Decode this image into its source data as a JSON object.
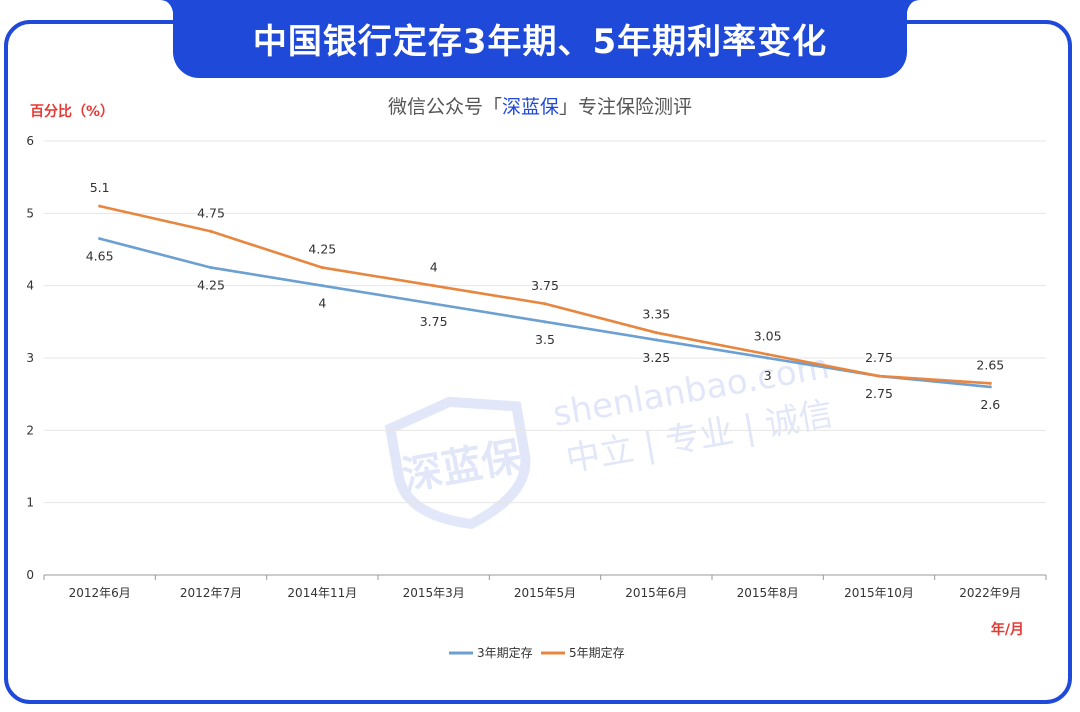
{
  "header": {
    "title": "中国银行定存3年期、5年期利率变化",
    "subtitle_prefix": "微信公众号「",
    "subtitle_brand": "深蓝保",
    "subtitle_suffix": "」专注保险测评"
  },
  "watermark": {
    "logo_text": "深蓝保",
    "url": "shenlanbao.com",
    "slogan": "中立 | 专业 | 诚信"
  },
  "colors": {
    "brand_blue": "#1f49d8",
    "series_3yr": "#6c9fd2",
    "series_5yr": "#e8863f",
    "axis_title_red": "#e53935"
  },
  "chart_data": {
    "type": "line",
    "ylabel": "百分比（%）",
    "xunit": "年/月",
    "ylim": [
      0,
      6
    ],
    "yticks": [
      0,
      1,
      2,
      3,
      4,
      5,
      6
    ],
    "grid": true,
    "legend_position": "bottom-center",
    "categories": [
      "2012年6月",
      "2012年7月",
      "2014年11月",
      "2015年3月",
      "2015年5月",
      "2015年6月",
      "2015年8月",
      "2015年10月",
      "2022年9月"
    ],
    "series": [
      {
        "name": "3年期定存",
        "values": [
          4.65,
          4.25,
          4,
          3.75,
          3.5,
          3.25,
          3,
          2.75,
          2.6
        ],
        "labels": [
          "4.65",
          "4.25",
          "4",
          "3.75",
          "3.5",
          "3.25",
          "3",
          "2.75",
          "2.6"
        ]
      },
      {
        "name": "5年期定存",
        "values": [
          5.1,
          4.75,
          4.25,
          4,
          3.75,
          3.35,
          3.05,
          2.75,
          2.65
        ],
        "labels": [
          "5.1",
          "4.75",
          "4.25",
          "4",
          "3.75",
          "3.35",
          "3.05",
          "2.75",
          "2.65"
        ]
      }
    ]
  }
}
